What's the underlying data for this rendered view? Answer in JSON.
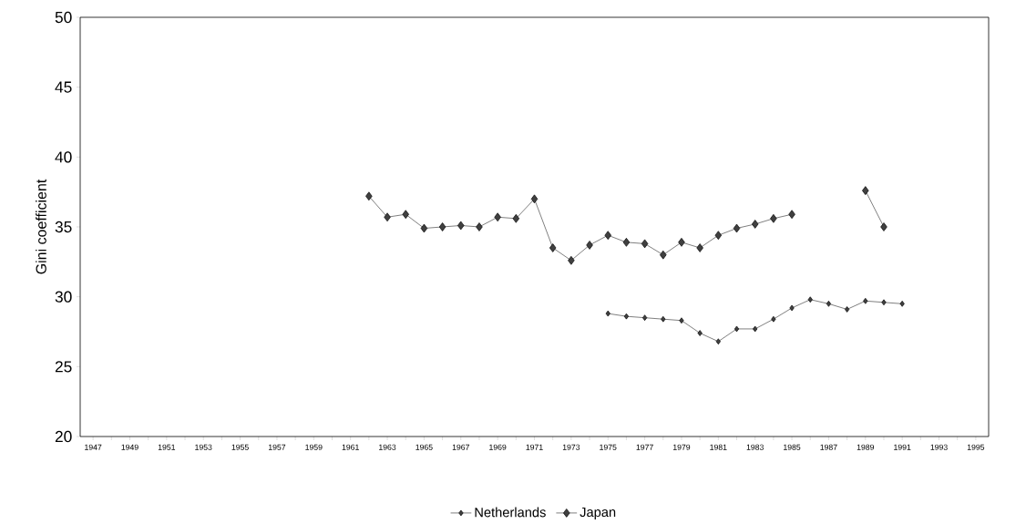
{
  "chart_data": {
    "type": "line",
    "ylabel": "Gini coefficient",
    "categories": [
      "1947",
      null,
      "1949",
      null,
      "1951",
      null,
      "1953",
      null,
      "1955",
      null,
      "1957",
      null,
      "1959",
      null,
      "1961",
      null,
      "1963",
      null,
      "1965",
      null,
      "1967",
      null,
      "1969",
      null,
      "1971",
      null,
      "1973",
      null,
      "1975",
      null,
      "1977",
      null,
      "1979",
      null,
      "1981",
      null,
      "1983",
      null,
      "1985",
      null,
      "1987",
      null,
      "1989",
      null,
      "1991",
      null,
      "1993",
      null,
      "1995"
    ],
    "series": [
      {
        "name": "Netherlands",
        "color": "#404040",
        "values": [
          null,
          null,
          null,
          null,
          null,
          null,
          null,
          null,
          null,
          null,
          null,
          null,
          null,
          null,
          null,
          null,
          null,
          null,
          null,
          null,
          null,
          null,
          null,
          null,
          null,
          null,
          null,
          null,
          28.8,
          28.6,
          28.5,
          28.4,
          28.3,
          27.4,
          26.8,
          27.7,
          27.7,
          28.4,
          29.2,
          29.8,
          29.5,
          29.1,
          29.7,
          29.6,
          29.5,
          null,
          null,
          null,
          null
        ]
      },
      {
        "name": "Japan",
        "color": "#404040",
        "values": [
          null,
          null,
          null,
          null,
          null,
          null,
          null,
          null,
          null,
          null,
          null,
          null,
          null,
          null,
          null,
          37.2,
          35.7,
          35.9,
          34.9,
          35.0,
          35.1,
          35.0,
          35.7,
          35.6,
          37.0,
          33.5,
          32.6,
          33.7,
          34.4,
          33.9,
          33.8,
          33.0,
          33.9,
          33.5,
          34.4,
          34.9,
          35.2,
          35.6,
          35.9,
          null,
          null,
          null,
          37.6,
          35.0,
          null,
          null,
          null,
          null,
          null
        ]
      }
    ],
    "ylim": [
      20,
      50
    ],
    "yticks": [
      20,
      25,
      30,
      35,
      40,
      45,
      50
    ],
    "grid": false,
    "legend": "bottom",
    "marker": "diamond",
    "line_style": "solid"
  }
}
